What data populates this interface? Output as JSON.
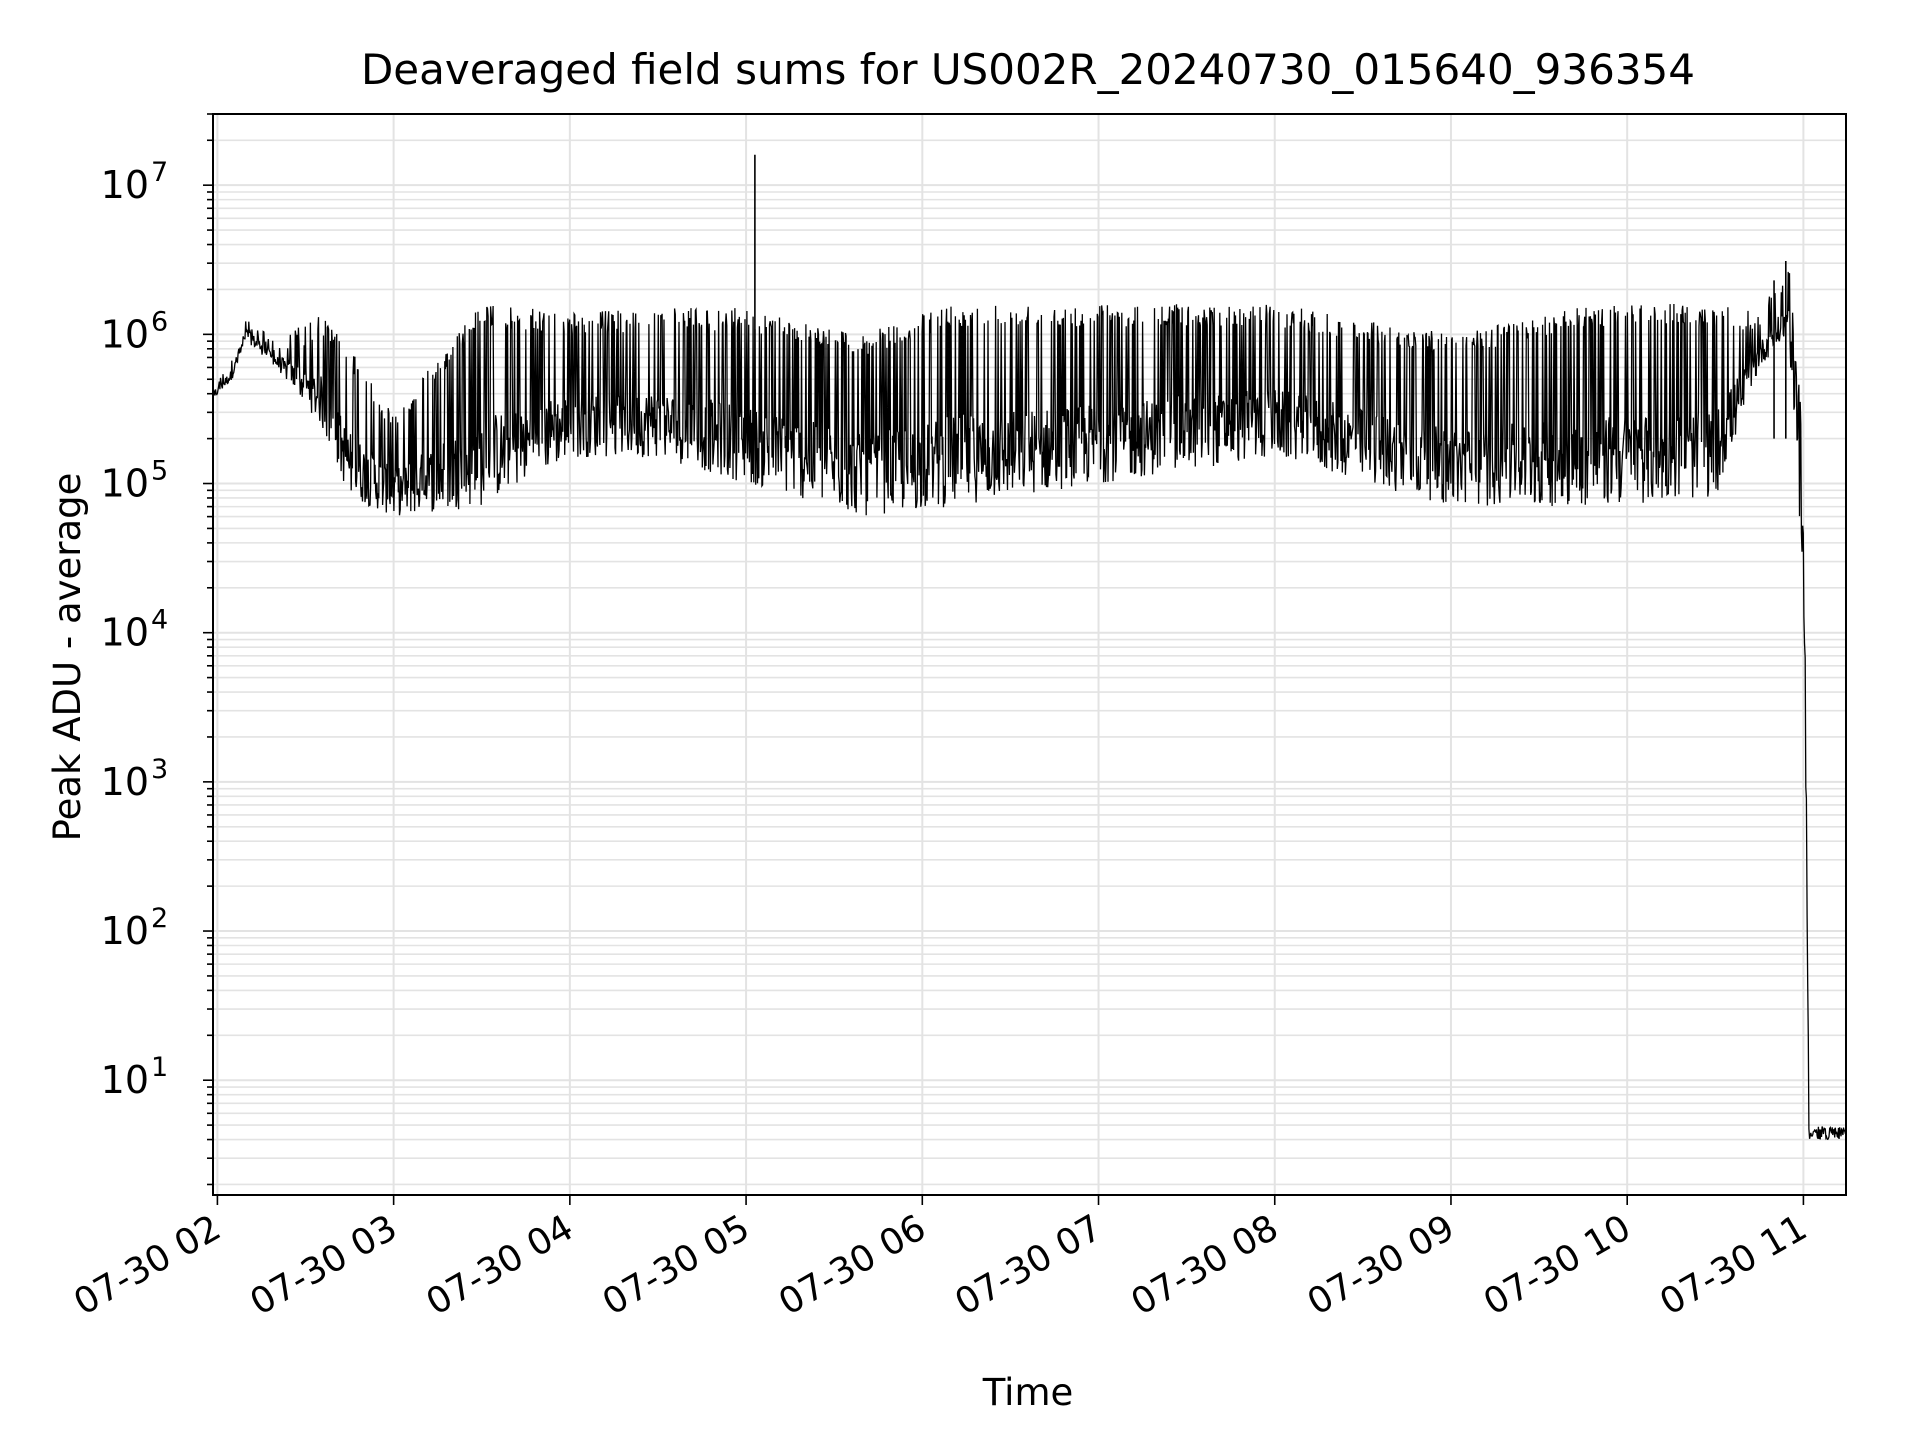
{
  "chart_data": {
    "type": "line",
    "title": "Deaveraged field sums for US002R_20240730_015640_936354",
    "xlabel": "Time",
    "ylabel": "Peak ADU - average",
    "yscale": "log",
    "ylim": [
      1.7,
      30000000
    ],
    "xlim": [
      "07-30 01:58:30",
      "07-30 11:14:30"
    ],
    "xticks": [
      "07-30 02",
      "07-30 03",
      "07-30 04",
      "07-30 05",
      "07-30 06",
      "07-30 07",
      "07-30 08",
      "07-30 09",
      "07-30 10",
      "07-30 11"
    ],
    "ytick_exponents": [
      "7",
      "6",
      "5",
      "4",
      "3",
      "2",
      "1"
    ],
    "ytick_base": "10",
    "grid": true,
    "legend": "none",
    "line_color": "#000000",
    "envelope_description_points": [
      {
        "time": "07-30 01:58",
        "baseline": 350000,
        "peak": 500000
      },
      {
        "time": "07-30 02:05",
        "baseline": 500000,
        "peak": 700000
      },
      {
        "time": "07-30 02:10",
        "baseline": 900000,
        "peak": 1400000
      },
      {
        "time": "07-30 02:20",
        "baseline": 600000,
        "peak": 900000
      },
      {
        "time": "07-30 02:35",
        "baseline": 250000,
        "peak": 1400000
      },
      {
        "time": "07-30 02:45",
        "baseline": 80000,
        "peak": 800000
      },
      {
        "time": "07-30 03:00",
        "baseline": 60000,
        "peak": 300000
      },
      {
        "time": "07-30 03:30",
        "baseline": 70000,
        "peak": 1600000
      },
      {
        "time": "07-30 04:00",
        "baseline": 150000,
        "peak": 1400000
      },
      {
        "time": "07-30 04:30",
        "baseline": 150000,
        "peak": 1500000
      },
      {
        "time": "07-30 05:00",
        "baseline": 100000,
        "peak": 1500000
      },
      {
        "time": "07-30 05:40",
        "baseline": 60000,
        "peak": 1000000
      },
      {
        "time": "07-30 06:10",
        "baseline": 70000,
        "peak": 1600000
      },
      {
        "time": "07-30 07:00",
        "baseline": 100000,
        "peak": 1600000
      },
      {
        "time": "07-30 08:00",
        "baseline": 150000,
        "peak": 1600000
      },
      {
        "time": "07-30 09:00",
        "baseline": 70000,
        "peak": 1000000
      },
      {
        "time": "07-30 09:50",
        "baseline": 70000,
        "peak": 1600000
      },
      {
        "time": "07-30 10:30",
        "baseline": 80000,
        "peak": 1600000
      },
      {
        "time": "07-30 10:45",
        "baseline": 600000,
        "peak": 1400000
      },
      {
        "time": "07-30 10:55",
        "baseline": 1000000,
        "peak": 3000000
      },
      {
        "time": "07-30 11:00",
        "baseline": 20000,
        "peak": 200000
      },
      {
        "time": "07-30 11:02",
        "baseline": 4,
        "peak": 5
      },
      {
        "time": "07-30 11:14",
        "baseline": 4,
        "peak": 5
      }
    ],
    "notable_spikes": [
      {
        "time": "07-30 05:03",
        "value": 16000000
      },
      {
        "time": "07-30 10:54",
        "value": 3100000
      },
      {
        "time": "07-30 10:50",
        "value": 2300000
      }
    ]
  }
}
